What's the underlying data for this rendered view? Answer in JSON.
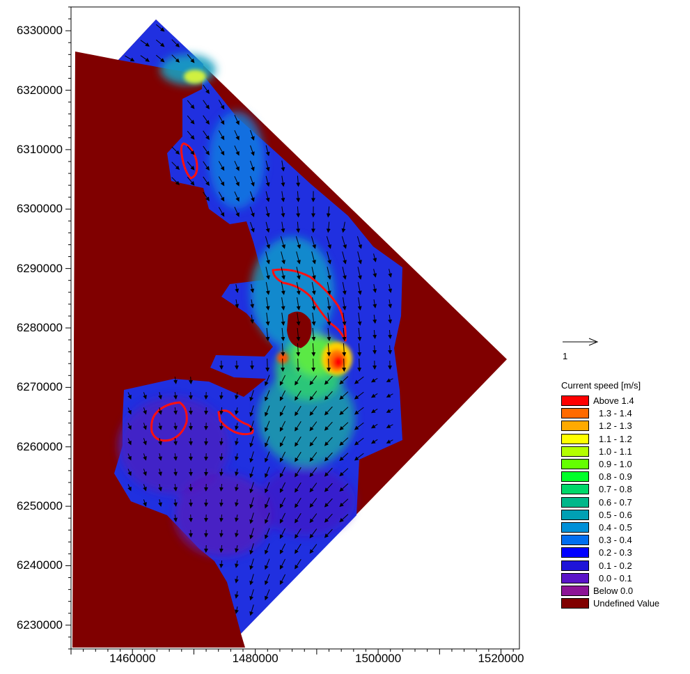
{
  "chart_data": {
    "type": "heatmap",
    "title": "",
    "xlabel": "",
    "ylabel": "",
    "xlim": [
      1450000,
      1523000
    ],
    "ylim": [
      6226000,
      6334000
    ],
    "x_ticks": [
      "1460000",
      "1480000",
      "1500000",
      "1520000"
    ],
    "y_ticks": [
      "6230000",
      "6240000",
      "6250000",
      "6260000",
      "6270000",
      "6280000",
      "6290000",
      "6300000",
      "6310000",
      "6320000",
      "6330000"
    ],
    "vector_scale": {
      "label": "1"
    },
    "legend": {
      "title": "Current speed [m/s]",
      "placement": "right",
      "entries": [
        {
          "label": "Above 1.4",
          "color": "#ff0000"
        },
        {
          "label": "1.3 - 1.4",
          "color": "#ff6a00"
        },
        {
          "label": "1.2 - 1.3",
          "color": "#ffaa00"
        },
        {
          "label": "1.1 - 1.2",
          "color": "#ffff00"
        },
        {
          "label": "1.0 - 1.1",
          "color": "#b4ff00"
        },
        {
          "label": "0.9 - 1.0",
          "color": "#64ff00"
        },
        {
          "label": "0.8 - 0.9",
          "color": "#00ff2a"
        },
        {
          "label": "0.7 - 0.8",
          "color": "#00d86a"
        },
        {
          "label": "0.6 - 0.7",
          "color": "#00b88a"
        },
        {
          "label": "0.5 - 0.6",
          "color": "#00a0b4"
        },
        {
          "label": "0.4 - 0.5",
          "color": "#0090d8"
        },
        {
          "label": "0.3 - 0.4",
          "color": "#006ef0"
        },
        {
          "label": "0.2 - 0.3",
          "color": "#0000ff"
        },
        {
          "label": "0.1 - 0.2",
          "color": "#1e14d8"
        },
        {
          "label": "0.0 - 0.1",
          "color": "#5a14c8"
        },
        {
          "label": "Below 0.0",
          "color": "#8c1496"
        },
        {
          "label": "Undefined Value",
          "color": "#800000"
        }
      ]
    }
  }
}
